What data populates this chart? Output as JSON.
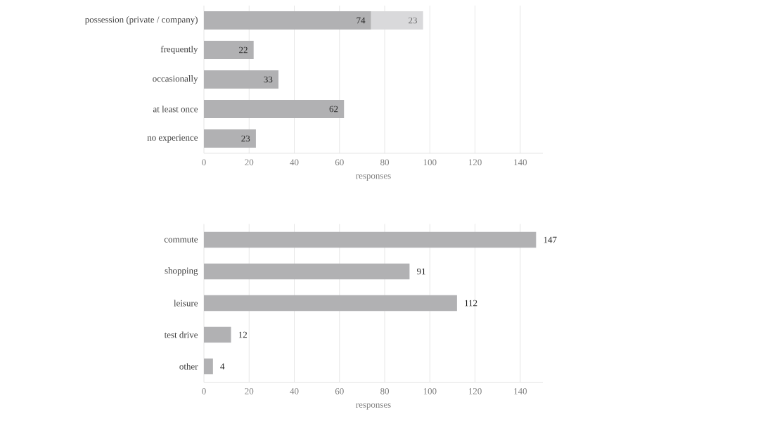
{
  "chart_data": [
    {
      "type": "bar",
      "orientation": "horizontal",
      "stacked": true,
      "categories": [
        "possession (private / company)",
        "frequently",
        "occasionally",
        "at least once",
        "no experience"
      ],
      "series": [
        {
          "color": "#b1b1b3",
          "values": [
            74,
            22,
            33,
            62,
            23
          ]
        },
        {
          "color": "#d9d9db",
          "values": [
            23,
            null,
            null,
            null,
            null
          ]
        }
      ],
      "xlabel": "responses",
      "xlim": [
        0,
        150
      ],
      "xticks": [
        0,
        20,
        40,
        60,
        80,
        100,
        120,
        140
      ],
      "grid": "x",
      "data_labels": true
    },
    {
      "type": "bar",
      "orientation": "horizontal",
      "categories": [
        "commute",
        "shopping",
        "leisure",
        "test drive",
        "other"
      ],
      "series": [
        {
          "color": "#b1b1b3",
          "values": [
            147,
            91,
            112,
            12,
            4
          ]
        }
      ],
      "xlabel": "responses",
      "xlim": [
        0,
        150
      ],
      "xticks": [
        0,
        20,
        40,
        60,
        80,
        100,
        120,
        140
      ],
      "grid": "x",
      "data_labels": true
    }
  ]
}
